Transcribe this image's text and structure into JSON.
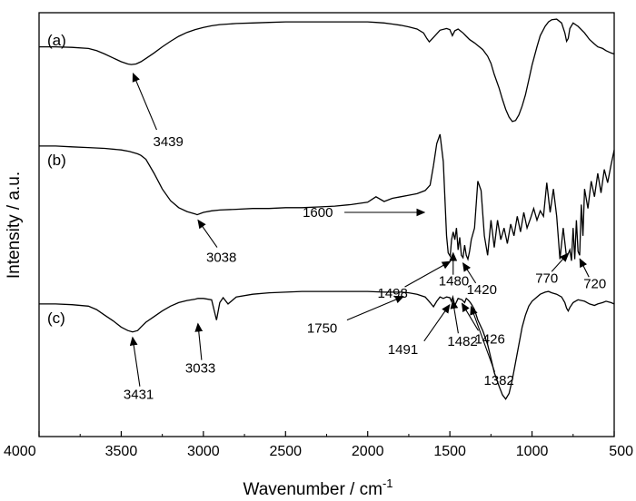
{
  "chart_data": {
    "type": "line",
    "xlabel": "Wavenumber / cm",
    "xlabel_sup": "-1",
    "ylabel": "Intensity / a.u.",
    "xlim": [
      4000,
      500
    ],
    "x_reversed": true,
    "x_ticks": [
      4000,
      3500,
      3000,
      2500,
      2000,
      1500,
      1000,
      500
    ],
    "y_ticks": [],
    "grid": false,
    "legend": "none",
    "series": [
      {
        "name": "(a)",
        "x": [
          4000,
          3900,
          3800,
          3700,
          3650,
          3600,
          3550,
          3500,
          3460,
          3439,
          3410,
          3380,
          3350,
          3300,
          3250,
          3200,
          3150,
          3100,
          3050,
          3000,
          2950,
          2900,
          2800,
          2700,
          2600,
          2500,
          2400,
          2300,
          2200,
          2100,
          2000,
          1950,
          1900,
          1850,
          1800,
          1750,
          1700,
          1660,
          1640,
          1625,
          1600,
          1560,
          1520,
          1500,
          1485,
          1470,
          1450,
          1420,
          1400,
          1380,
          1350,
          1300,
          1270,
          1250,
          1230,
          1200,
          1180,
          1160,
          1140,
          1120,
          1100,
          1080,
          1060,
          1040,
          1020,
          1000,
          970,
          950,
          920,
          900,
          880,
          850,
          820,
          800,
          790,
          780,
          770,
          750,
          720,
          680,
          650,
          620,
          600,
          570,
          550,
          520,
          500
        ],
        "y": [
          0.55,
          0.55,
          0.56,
          0.58,
          0.62,
          0.68,
          0.75,
          0.82,
          0.86,
          0.87,
          0.86,
          0.82,
          0.76,
          0.66,
          0.55,
          0.45,
          0.36,
          0.29,
          0.24,
          0.2,
          0.17,
          0.15,
          0.13,
          0.12,
          0.11,
          0.1,
          0.1,
          0.1,
          0.1,
          0.1,
          0.1,
          0.11,
          0.12,
          0.14,
          0.16,
          0.19,
          0.23,
          0.3,
          0.4,
          0.46,
          0.38,
          0.25,
          0.22,
          0.24,
          0.35,
          0.26,
          0.23,
          0.3,
          0.36,
          0.42,
          0.48,
          0.6,
          0.72,
          0.85,
          1.05,
          1.3,
          1.5,
          1.68,
          1.82,
          1.9,
          1.88,
          1.78,
          1.62,
          1.42,
          1.15,
          0.88,
          0.55,
          0.35,
          0.18,
          0.1,
          0.06,
          0.05,
          0.12,
          0.3,
          0.45,
          0.4,
          0.22,
          0.12,
          0.18,
          0.3,
          0.42,
          0.5,
          0.55,
          0.58,
          0.62,
          0.66,
          0.68
        ],
        "annotations": [
          {
            "text": "3439",
            "x": 3439,
            "y": 0.87
          }
        ]
      },
      {
        "name": "(b)",
        "x": [
          4000,
          3900,
          3800,
          3700,
          3600,
          3500,
          3450,
          3400,
          3380,
          3350,
          3300,
          3250,
          3200,
          3150,
          3100,
          3050,
          3038,
          3000,
          2950,
          2900,
          2800,
          2700,
          2600,
          2500,
          2400,
          2300,
          2200,
          2100,
          2000,
          1950,
          1900,
          1850,
          1800,
          1750,
          1700,
          1650,
          1620,
          1600,
          1580,
          1560,
          1540,
          1520,
          1510,
          1498,
          1490,
          1480,
          1470,
          1460,
          1450,
          1440,
          1430,
          1420,
          1410,
          1400,
          1390,
          1380,
          1370,
          1350,
          1330,
          1310,
          1290,
          1270,
          1250,
          1230,
          1210,
          1190,
          1170,
          1150,
          1130,
          1110,
          1090,
          1070,
          1050,
          1030,
          1010,
          990,
          970,
          950,
          930,
          910,
          890,
          870,
          850,
          830,
          810,
          790,
          770,
          760,
          750,
          740,
          730,
          720,
          710,
          700,
          690,
          680,
          660,
          640,
          620,
          600,
          580,
          560,
          540,
          520,
          500
        ],
        "y": [
          0.15,
          0.15,
          0.16,
          0.17,
          0.18,
          0.2,
          0.22,
          0.25,
          0.27,
          0.32,
          0.5,
          0.7,
          0.85,
          0.94,
          0.99,
          1.02,
          1.03,
          1.0,
          0.98,
          0.97,
          0.96,
          0.95,
          0.95,
          0.94,
          0.94,
          0.93,
          0.92,
          0.9,
          0.87,
          0.8,
          0.86,
          0.82,
          0.8,
          0.78,
          0.76,
          0.72,
          0.65,
          0.4,
          0.12,
          0.0,
          0.35,
          1.3,
          1.52,
          1.56,
          1.35,
          1.25,
          1.35,
          1.2,
          1.48,
          1.32,
          1.55,
          1.58,
          1.42,
          1.55,
          1.6,
          1.5,
          1.35,
          1.2,
          0.6,
          0.72,
          1.3,
          1.55,
          1.1,
          1.45,
          1.1,
          1.35,
          1.2,
          1.4,
          1.15,
          1.3,
          1.05,
          1.25,
          1.0,
          1.2,
          1.08,
          0.95,
          1.1,
          0.98,
          1.05,
          0.62,
          1.0,
          0.7,
          1.05,
          1.6,
          1.2,
          1.58,
          1.48,
          1.62,
          1.2,
          1.6,
          1.1,
          1.5,
          1.55,
          0.9,
          1.3,
          0.7,
          0.95,
          0.6,
          0.8,
          0.5,
          0.75,
          0.45,
          0.62,
          0.4,
          0.2
        ],
        "annotations": [
          {
            "text": "3038",
            "x": 3038,
            "y": 1.03
          },
          {
            "text": "1600",
            "x": 1600,
            "y": 1.0
          },
          {
            "text": "1498",
            "x": 1498,
            "y": 1.56
          },
          {
            "text": "1480",
            "x": 1480,
            "y": 1.45
          },
          {
            "text": "1420",
            "x": 1420,
            "y": 1.58
          },
          {
            "text": "770",
            "x": 770,
            "y": 1.48
          },
          {
            "text": "720",
            "x": 720,
            "y": 1.55
          }
        ]
      },
      {
        "name": "(c)",
        "x": [
          4000,
          3900,
          3800,
          3700,
          3650,
          3600,
          3550,
          3500,
          3460,
          3431,
          3400,
          3380,
          3350,
          3300,
          3250,
          3200,
          3150,
          3100,
          3050,
          3033,
          3000,
          2950,
          2920,
          2900,
          2880,
          2850,
          2800,
          2700,
          2600,
          2500,
          2400,
          2300,
          2200,
          2100,
          2000,
          1900,
          1800,
          1750,
          1700,
          1650,
          1620,
          1600,
          1580,
          1560,
          1540,
          1520,
          1500,
          1491,
          1482,
          1470,
          1450,
          1426,
          1410,
          1400,
          1390,
          1382,
          1370,
          1350,
          1330,
          1300,
          1270,
          1250,
          1230,
          1200,
          1180,
          1160,
          1140,
          1120,
          1100,
          1080,
          1060,
          1040,
          1020,
          1000,
          970,
          950,
          920,
          900,
          880,
          850,
          820,
          800,
          790,
          780,
          770,
          750,
          720,
          680,
          650,
          620,
          600,
          570,
          550,
          520,
          500
        ],
        "y": [
          0.22,
          0.22,
          0.23,
          0.25,
          0.3,
          0.38,
          0.46,
          0.55,
          0.6,
          0.62,
          0.6,
          0.55,
          0.48,
          0.4,
          0.32,
          0.25,
          0.2,
          0.17,
          0.15,
          0.14,
          0.14,
          0.16,
          0.45,
          0.2,
          0.13,
          0.22,
          0.12,
          0.08,
          0.06,
          0.05,
          0.04,
          0.04,
          0.04,
          0.04,
          0.04,
          0.05,
          0.05,
          0.06,
          0.08,
          0.12,
          0.2,
          0.26,
          0.18,
          0.12,
          0.14,
          0.12,
          0.13,
          0.18,
          0.12,
          0.24,
          0.14,
          0.16,
          0.2,
          0.14,
          0.16,
          0.18,
          0.22,
          0.3,
          0.45,
          0.6,
          0.8,
          1.0,
          1.2,
          1.4,
          1.52,
          1.58,
          1.5,
          1.3,
          1.05,
          0.8,
          0.55,
          0.38,
          0.25,
          0.18,
          0.12,
          0.08,
          0.05,
          0.04,
          0.06,
          0.08,
          0.12,
          0.2,
          0.28,
          0.32,
          0.27,
          0.2,
          0.16,
          0.18,
          0.22,
          0.24,
          0.22,
          0.2,
          0.18,
          0.2,
          0.22
        ],
        "annotations": [
          {
            "text": "3431",
            "x": 3431,
            "y": 0.62
          },
          {
            "text": "3033",
            "x": 3033,
            "y": 0.45
          },
          {
            "text": "1750",
            "x": 1750,
            "y": 0.06
          },
          {
            "text": "1491",
            "x": 1491,
            "y": 0.18
          },
          {
            "text": "1482",
            "x": 1482,
            "y": 0.12
          },
          {
            "text": "1426",
            "x": 1426,
            "y": 0.16
          },
          {
            "text": "1382",
            "x": 1382,
            "y": 0.18
          }
        ]
      }
    ]
  }
}
